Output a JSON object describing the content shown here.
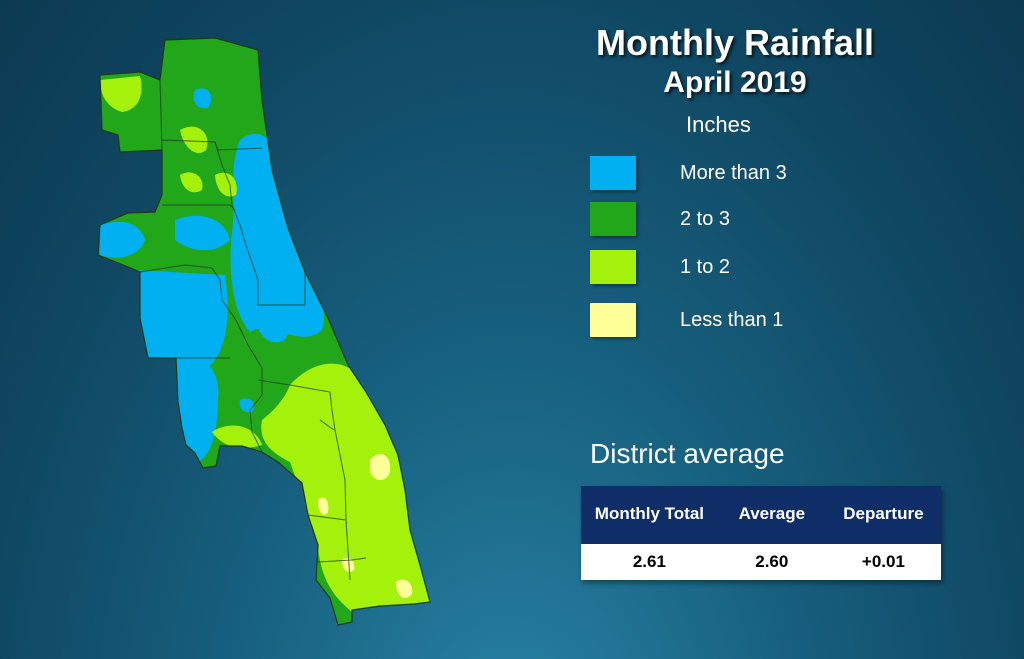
{
  "title": "Monthly Rainfall",
  "subtitle": "April 2019",
  "legend": {
    "units": "Inches",
    "items": [
      {
        "label": "More than 3",
        "color": "#00b0f0"
      },
      {
        "label": "2 to 3",
        "color": "#22a61a"
      },
      {
        "label": "1 to 2",
        "color": "#a4f20c"
      },
      {
        "label": "Less than 1",
        "color": "#ffff99"
      }
    ]
  },
  "district": {
    "heading": "District average",
    "headers": [
      "Monthly Total",
      "Average",
      "Departure"
    ],
    "values": [
      "2.61",
      "2.60",
      "+0.01"
    ]
  },
  "colors": {
    "table_header": "#0f2e68",
    "background": "#135472"
  }
}
